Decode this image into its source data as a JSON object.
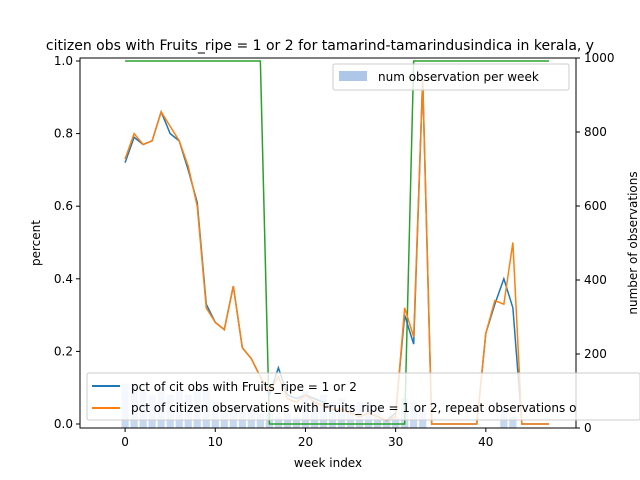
{
  "chart_data": {
    "type": "line",
    "title": "citizen obs with Fruits_ripe = 1 or 2 for tamarind-tamarindusindica in kerala, y",
    "xlabel": "week index",
    "ylabel": "percent",
    "y2label": "number of observations",
    "xlim": [
      -5,
      50
    ],
    "ylim": [
      0,
      1.0
    ],
    "y2lim": [
      0,
      1000
    ],
    "xticks": [
      0,
      10,
      20,
      30,
      40
    ],
    "yticks": [
      0.0,
      0.2,
      0.4,
      0.6,
      0.8,
      1.0
    ],
    "y2ticks": [
      0,
      200,
      400,
      600,
      800,
      1000
    ],
    "x": [
      0,
      1,
      2,
      3,
      4,
      5,
      6,
      7,
      8,
      9,
      10,
      11,
      12,
      13,
      14,
      15,
      16,
      17,
      18,
      19,
      20,
      21,
      22,
      23,
      24,
      25,
      26,
      27,
      28,
      29,
      30,
      31,
      32,
      33,
      34,
      35,
      36,
      37,
      38,
      39,
      40,
      41,
      42,
      43,
      44,
      45,
      46,
      47
    ],
    "series": [
      {
        "name": "pct of cit obs with Fruits_ripe = 1 or 2",
        "color": "#1f77b4",
        "values": [
          0.72,
          0.79,
          0.77,
          0.78,
          0.86,
          0.8,
          0.78,
          0.7,
          0.61,
          0.33,
          0.28,
          0.26,
          0.38,
          0.21,
          0.18,
          0.13,
          0.08,
          0.155,
          0.08,
          0.07,
          0.08,
          0.07,
          0.06,
          0.04,
          0.04,
          0.03,
          0.02,
          0.03,
          0.02,
          0.01,
          0.03,
          0.3,
          0.22,
          0.95,
          0.0,
          0.0,
          0.0,
          0.0,
          0.0,
          0.0,
          0.25,
          0.33,
          0.4,
          0.32,
          0.0,
          0.0,
          0.0,
          0.0
        ]
      },
      {
        "name": "pct of citizen observations with Fruits_ripe = 1 or 2, repeat observations o",
        "color": "#ff7f0e",
        "values": [
          0.73,
          0.8,
          0.77,
          0.78,
          0.86,
          0.82,
          0.78,
          0.71,
          0.6,
          0.32,
          0.28,
          0.26,
          0.38,
          0.21,
          0.18,
          0.13,
          0.09,
          0.13,
          0.07,
          0.06,
          0.08,
          0.06,
          0.05,
          0.04,
          0.04,
          0.03,
          0.02,
          0.03,
          0.02,
          0.01,
          0.02,
          0.32,
          0.24,
          0.95,
          0.0,
          0.0,
          0.0,
          0.0,
          0.0,
          0.0,
          0.25,
          0.34,
          0.33,
          0.5,
          0.0,
          0.0,
          0.0,
          0.0
        ]
      },
      {
        "name": "",
        "color": "#2ca02c",
        "values": [
          1,
          1,
          1,
          1,
          1,
          1,
          1,
          1,
          1,
          1,
          1,
          1,
          1,
          1,
          1,
          1,
          0,
          0,
          0,
          0,
          0,
          0,
          0,
          0,
          0,
          0,
          0,
          0,
          0,
          0,
          0,
          0,
          1,
          1,
          1,
          1,
          1,
          1,
          1,
          1,
          1,
          1,
          1,
          1,
          1,
          1,
          1,
          1
        ]
      }
    ],
    "bars": {
      "name": "num observation per week",
      "color": "#aec7e8",
      "values": [
        120,
        120,
        100,
        90,
        110,
        90,
        100,
        90,
        110,
        110,
        70,
        40,
        60,
        60,
        50,
        40,
        40,
        30,
        40,
        30,
        100,
        80,
        90,
        70,
        80,
        60,
        70,
        70,
        60,
        20,
        30,
        80,
        70,
        50,
        0,
        0,
        0,
        0,
        0,
        0,
        0,
        0,
        50,
        30,
        0,
        0,
        0,
        0
      ]
    },
    "legend_top": "top-right",
    "legend_bottom": "bottom-left",
    "grid": false
  }
}
